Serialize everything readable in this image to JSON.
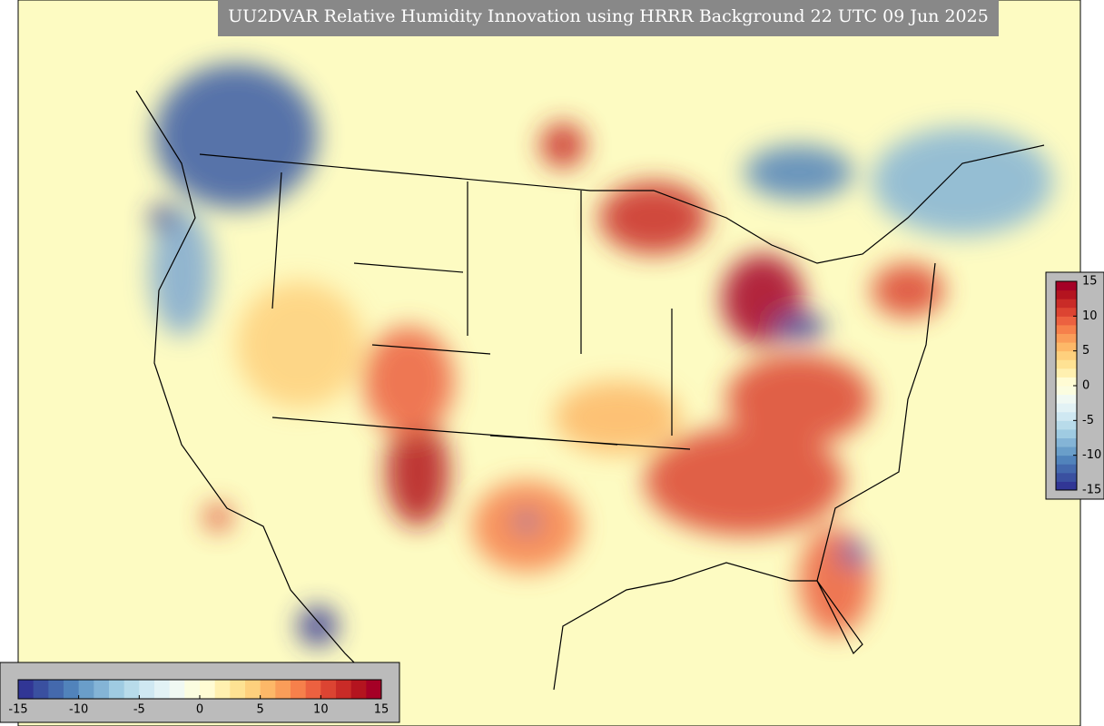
{
  "title": "UU2DVAR Relative Humidity Innovation using HRRR Background 22 UTC 09 Jun 2025",
  "colorbar": {
    "range": [
      -15,
      15
    ],
    "ticks": [
      -15,
      -10,
      -5,
      0,
      5,
      10,
      15
    ],
    "colors": [
      "#313695",
      "#3a50a0",
      "#4469ad",
      "#5183bb",
      "#6a9ec9",
      "#84b4d6",
      "#9fcbe2",
      "#b8dbea",
      "#cfe8f2",
      "#e2f2f5",
      "#f0f9f3",
      "#fbfde0",
      "#fffcd4",
      "#fff0b0",
      "#fee293",
      "#fed07d",
      "#fdb868",
      "#fa9d59",
      "#f6804b",
      "#ec6140",
      "#dc4432",
      "#c92b27",
      "#b4141f",
      "#a50026"
    ]
  }
}
